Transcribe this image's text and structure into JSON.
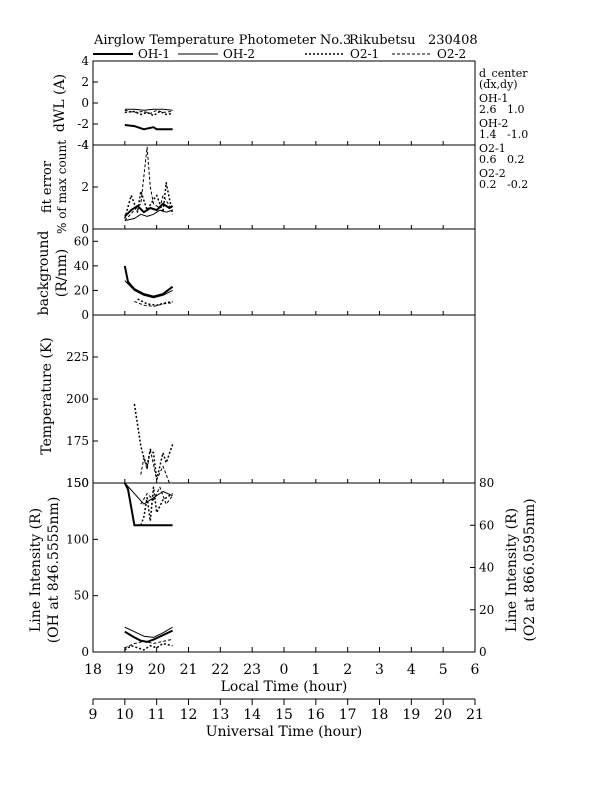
{
  "chart_data": {
    "type": "line",
    "title": "Airglow Temperature Photometer No.3",
    "station": "Rikubetsu",
    "date_code": "230408",
    "legend": [
      {
        "name": "OH-1",
        "style": "solid",
        "width": 2
      },
      {
        "name": "OH-2",
        "style": "solid",
        "width": 1
      },
      {
        "name": "O2-1",
        "style": "dotted",
        "width": 1.5
      },
      {
        "name": "O2-2",
        "style": "dashed",
        "width": 1
      }
    ],
    "x_axis": {
      "label": "Local Time (hour)",
      "range": [
        18,
        30
      ],
      "ticks": [
        "18",
        "19",
        "20",
        "21",
        "22",
        "23",
        "0",
        "1",
        "2",
        "3",
        "4",
        "5",
        "6"
      ]
    },
    "x2_axis": {
      "label": "Universal Time (hour)",
      "range": [
        9,
        21
      ],
      "ticks": [
        "9",
        "10",
        "11",
        "12",
        "13",
        "14",
        "15",
        "16",
        "17",
        "18",
        "19",
        "20",
        "21"
      ]
    },
    "d_center": {
      "title": "d_center",
      "subtitle": "(dx,dy)",
      "entries": [
        {
          "name": "OH-1",
          "value": "2.6   1.0"
        },
        {
          "name": "OH-2",
          "value": "1.4   -1.0"
        },
        {
          "name": "O2-1",
          "value": "0.6   0.2"
        },
        {
          "name": "O2-2",
          "value": "0.2   -0.2"
        }
      ]
    },
    "panels": [
      {
        "id": "dwl",
        "ylabel": "dWL (A)",
        "ylim": [
          -4,
          4
        ],
        "yticks": [
          "4",
          "2",
          "0",
          "-2",
          "-4"
        ],
        "series": [
          {
            "name": "OH-1",
            "x": [
              19.0,
              19.3,
              19.6,
              19.9,
              20.0,
              20.3,
              20.5
            ],
            "y": [
              -2.1,
              -2.2,
              -2.5,
              -2.3,
              -2.5,
              -2.5,
              -2.5
            ]
          },
          {
            "name": "OH-2",
            "x": [
              19.0,
              19.3,
              19.6,
              19.9,
              20.2,
              20.5
            ],
            "y": [
              -0.6,
              -0.6,
              -0.7,
              -0.6,
              -0.6,
              -0.7
            ]
          },
          {
            "name": "O2-1",
            "x": [
              19.0,
              19.3,
              19.5,
              19.7,
              19.9,
              20.1,
              20.3,
              20.5
            ],
            "y": [
              -0.9,
              -0.8,
              -1.1,
              -0.9,
              -1.2,
              -0.8,
              -1.1,
              -1.0
            ]
          },
          {
            "name": "O2-2",
            "x": [
              19.0,
              19.3,
              19.6,
              19.8,
              20.0,
              20.2,
              20.5
            ],
            "y": [
              -0.7,
              -0.9,
              -0.8,
              -1.0,
              -0.7,
              -0.9,
              -0.8
            ]
          }
        ]
      },
      {
        "id": "fit",
        "ylabel": "fit error",
        "ylabel2": "% of max count",
        "ylim": [
          0,
          4
        ],
        "yticks": [
          "4",
          "2",
          "0"
        ],
        "series": [
          {
            "name": "OH-1",
            "x": [
              19.0,
              19.2,
              19.4,
              19.6,
              19.8,
              20.0,
              20.2,
              20.4,
              20.5
            ],
            "y": [
              0.6,
              0.9,
              1.1,
              0.8,
              1.0,
              0.9,
              1.2,
              1.0,
              1.1
            ]
          },
          {
            "name": "OH-2",
            "x": [
              19.0,
              19.3,
              19.5,
              19.7,
              19.9,
              20.1,
              20.3,
              20.5
            ],
            "y": [
              0.4,
              0.5,
              0.7,
              0.6,
              0.7,
              0.9,
              0.8,
              0.9
            ]
          },
          {
            "name": "O2-1",
            "x": [
              19.0,
              19.2,
              19.4,
              19.5,
              19.7,
              19.9,
              20.0,
              20.2,
              20.3,
              20.5
            ],
            "y": [
              0.5,
              1.6,
              0.8,
              1.8,
              0.9,
              1.4,
              1.6,
              0.8,
              2.2,
              0.7
            ]
          },
          {
            "name": "O2-2",
            "x": [
              19.0,
              19.3,
              19.5,
              19.7,
              19.8,
              19.9,
              20.1,
              20.2,
              20.4,
              20.5
            ],
            "y": [
              0.4,
              0.9,
              1.2,
              3.9,
              2.0,
              1.2,
              1.0,
              1.6,
              1.1,
              0.9
            ]
          }
        ]
      },
      {
        "id": "bg",
        "ylabel": "background",
        "ylabel2": "(R/nm)",
        "ylim": [
          0,
          70
        ],
        "yticks": [
          "60",
          "40",
          "20",
          "0"
        ],
        "series": [
          {
            "name": "OH-1",
            "x": [
              19.0,
              19.1,
              19.3,
              19.6,
              19.9,
              20.2,
              20.5
            ],
            "y": [
              40,
              27,
              21,
              17,
              15,
              17,
              23
            ]
          },
          {
            "name": "OH-2",
            "x": [
              19.0,
              19.3,
              19.6,
              19.9,
              20.2,
              20.5
            ],
            "y": [
              28,
              20,
              16,
              14,
              16,
              20
            ]
          },
          {
            "name": "O2-1",
            "x": [
              19.4,
              19.7,
              20.0,
              20.3,
              20.5
            ],
            "y": [
              13,
              9,
              8,
              10,
              11
            ]
          },
          {
            "name": "O2-2",
            "x": [
              19.3,
              19.6,
              19.9,
              20.2,
              20.5
            ],
            "y": [
              11,
              8,
              7,
              9,
              10
            ]
          }
        ]
      },
      {
        "id": "temp",
        "ylabel": "Temperature (K)",
        "ylim": [
          150,
          250
        ],
        "yticks": [
          "225",
          "200",
          "175",
          "150"
        ],
        "series": [
          {
            "name": "O2-1",
            "x": [
              19.3,
              19.5,
              19.6,
              19.7,
              19.8,
              19.9,
              20.0,
              20.2,
              20.3,
              20.5
            ],
            "y": [
              197,
              172,
              165,
              160,
              170,
              168,
              152,
              168,
              162,
              173
            ]
          },
          {
            "name": "O2-2",
            "x": [
              19.5,
              19.6,
              19.7,
              19.8,
              20.0,
              20.2,
              20.4
            ],
            "y": [
              155,
              165,
              158,
              170,
              152,
              160,
              150
            ]
          }
        ]
      },
      {
        "id": "li",
        "ylabel": "Line Intensity (R)",
        "ylabel2": "(OH at 846.5555nm)",
        "ylabel_right": "Line Intensity (R)",
        "ylabel_right2": "(O2 at 866.0595nm)",
        "ylim": [
          0,
          150
        ],
        "yticks": [
          "150",
          "100",
          "50",
          "0"
        ],
        "ylim_right": [
          0,
          80
        ],
        "yticks_right": [
          "80",
          "60",
          "40",
          "20",
          "0"
        ],
        "series": [
          {
            "name": "OH-1",
            "axis": "left",
            "x": [
              19.0,
              19.3,
              19.5,
              19.7,
              19.9,
              20.2,
              20.5
            ],
            "y": [
              18,
              13,
              10,
              9,
              11,
              15,
              19
            ]
          },
          {
            "name": "OH-2",
            "axis": "left",
            "x": [
              19.0,
              19.3,
              19.6,
              19.9,
              20.2,
              20.5
            ],
            "y": [
              22,
              18,
              14,
              13,
              17,
              22
            ]
          },
          {
            "name": "O2-1",
            "axis": "right",
            "x": [
              19.0,
              19.2,
              19.4,
              19.6,
              19.8,
              20.0,
              20.2,
              20.5
            ],
            "y": [
              1,
              3,
              2,
              1,
              3,
              2,
              4,
              3
            ]
          },
          {
            "name": "O2-2",
            "axis": "right",
            "x": [
              19.0,
              19.3,
              19.6,
              19.9,
              20.2,
              20.5
            ],
            "y": [
              2,
              4,
              5,
              4,
              5,
              6
            ]
          },
          {
            "name": "OH-1",
            "axis": "right",
            "x": [
              19.0,
              19.1,
              19.3,
              19.4,
              19.5,
              19.7,
              20.0,
              20.2,
              20.5
            ],
            "y": [
              80,
              77,
              60,
              60,
              60,
              60,
              60,
              60,
              60
            ]
          },
          {
            "name": "OH-2",
            "axis": "right",
            "x": [
              19.0,
              19.3,
              19.6,
              19.9,
              20.2,
              20.5
            ],
            "y": [
              80,
              75,
              70,
              73,
              76,
              74
            ]
          },
          {
            "name": "O2-1",
            "axis": "right",
            "x": [
              19.5,
              19.6,
              19.7,
              19.8,
              19.9,
              20.0,
              20.2,
              20.5
            ],
            "y": [
              60,
              64,
              73,
              62,
              78,
              66,
              72,
              75
            ]
          },
          {
            "name": "O2-2",
            "axis": "right",
            "x": [
              19.5,
              19.7,
              19.9,
              20.1,
              20.3,
              20.5
            ],
            "y": [
              70,
              75,
              72,
              78,
              70,
              74
            ]
          }
        ]
      }
    ]
  }
}
